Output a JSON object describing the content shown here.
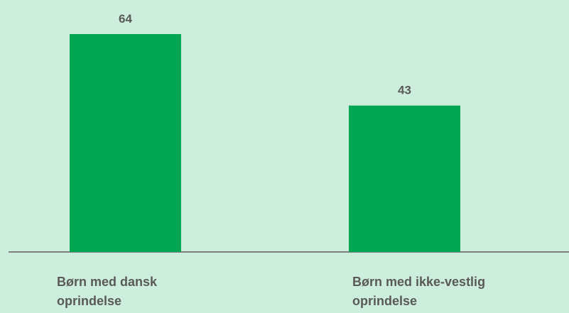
{
  "chart_data": {
    "type": "bar",
    "categories": [
      "Børn med dansk oprindelse",
      "Børn med ikke-vestlig oprindelse"
    ],
    "values": [
      64,
      43
    ],
    "color": "#00a651"
  }
}
